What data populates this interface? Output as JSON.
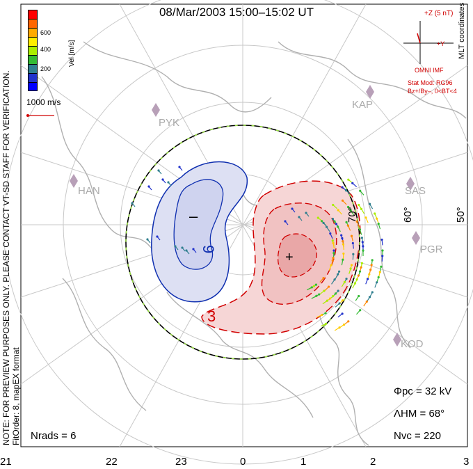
{
  "title": "08/Mar/2003  15:00–15:02  UT",
  "side_note": {
    "line1": "NOTE: FOR PREVIEW PURPOSES ONLY. PLEASE CONTACT VT-SD STAFF FOR VERIFICATION.",
    "line2": "FitOrder: 8,  mapEX format"
  },
  "coordinates_label": "MLT coordinates",
  "velocity_scale": {
    "label": "Vel [m/s]",
    "ticks": [
      "600",
      "400",
      "200"
    ],
    "colors": [
      "#ff0000",
      "#ff6600",
      "#ffaa00",
      "#ffee00",
      "#aaee00",
      "#33bb33",
      "#2f7f8f",
      "#2233cc",
      "#0000ff"
    ]
  },
  "reference_vector": "1000 m/s",
  "imf": {
    "z_label": "+Z (5 nT)",
    "y_label": "+Y",
    "source": "OMNI IMF",
    "model_line1": "Stat Mod: RG96",
    "model_line2": "Bz+/By–, 0<BT<4"
  },
  "radars": [
    "PYK",
    "HAN",
    "KAP",
    "SAS",
    "PGR",
    "KOD"
  ],
  "lat_labels": [
    "70°",
    "60°",
    "50°"
  ],
  "mlt_ticks": [
    "21",
    "22",
    "23",
    "0",
    "1",
    "2",
    "3"
  ],
  "contours": {
    "neg_label": "9",
    "pos_label": "3",
    "neg_sign": "–",
    "pos_sign": "+"
  },
  "stats": {
    "phi_pc": "Φpc = 32 kV",
    "lambda_hm": "ΛHM = 68°",
    "n_vc": "Nvc = 220",
    "n_rads": "Nrads = 6"
  },
  "colors": {
    "cross_polar_red": "#d10000",
    "neg_cell_fill": "#dde0f3",
    "pos_cell_fill": "#f6d6d6",
    "coast": "#b0b0b0"
  }
}
